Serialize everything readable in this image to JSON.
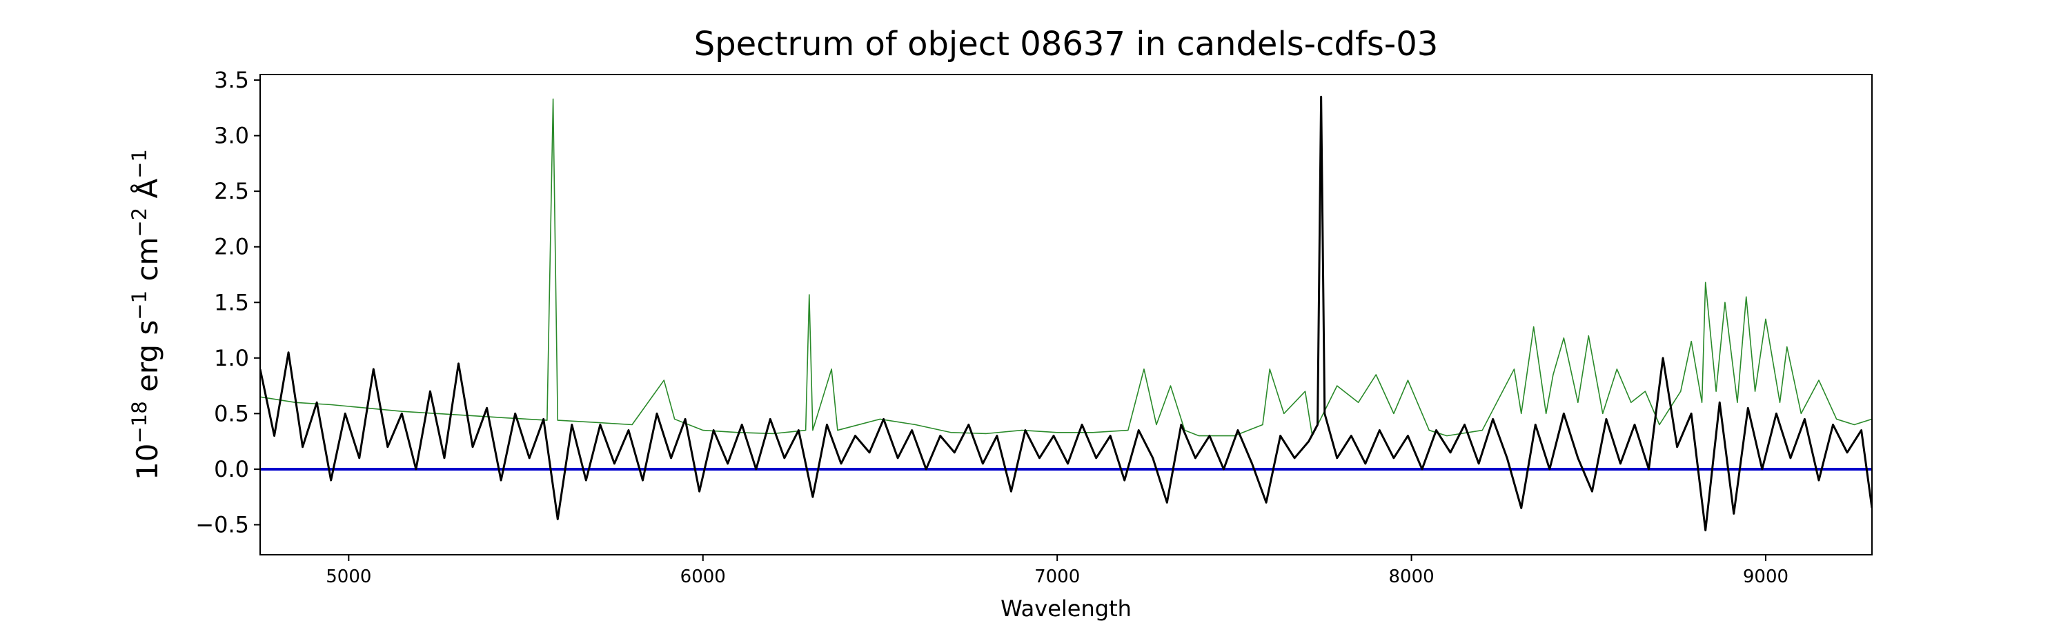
{
  "chart_data": {
    "type": "line",
    "title": "Spectrum of object 08637 in candels-cdfs-03",
    "xlabel": "Wavelength",
    "ylabel": [
      "10",
      "−18",
      " erg s",
      "−1",
      " cm",
      "−2",
      " Å",
      "−1"
    ],
    "xlim": [
      4750,
      9300
    ],
    "xticks": [
      5000,
      6000,
      7000,
      8000,
      9000
    ],
    "ylim": [
      -0.77,
      3.55
    ],
    "yticks": [
      {
        "value": -0.5,
        "label": "−0.5"
      },
      {
        "value": 0,
        "label": "0.0"
      },
      0.5,
      {
        "value": 1,
        "label": "1.0"
      },
      1.5,
      {
        "value": 2,
        "label": "2.0"
      },
      2.5,
      {
        "value": 3,
        "label": "3.0"
      },
      3.5
    ],
    "series": [
      {
        "color": "#2a8a2a",
        "width": 1.6,
        "x": [
          4750,
          4850,
          4950,
          5050,
          5150,
          5250,
          5350,
          5450,
          5560,
          5577,
          5590,
          5700,
          5800,
          5890,
          5920,
          6000,
          6100,
          6200,
          6290,
          6300,
          6310,
          6363,
          6380,
          6500,
          6600,
          6700,
          6800,
          6900,
          7000,
          7100,
          7200,
          7245,
          7280,
          7320,
          7360,
          7400,
          7500,
          7580,
          7600,
          7640,
          7700,
          7720,
          7790,
          7850,
          7900,
          7950,
          7990,
          8050,
          8100,
          8200,
          8290,
          8310,
          8345,
          8380,
          8400,
          8430,
          8470,
          8500,
          8540,
          8580,
          8620,
          8660,
          8700,
          8760,
          8790,
          8820,
          8830,
          8860,
          8885,
          8920,
          8945,
          8970,
          9000,
          9040,
          9060,
          9100,
          9150,
          9200,
          9250,
          9300
        ],
        "values": [
          0.65,
          0.6,
          0.58,
          0.55,
          0.52,
          0.5,
          0.48,
          0.46,
          0.44,
          3.33,
          0.44,
          0.42,
          0.4,
          0.8,
          0.45,
          0.35,
          0.33,
          0.32,
          0.35,
          1.57,
          0.35,
          0.9,
          0.35,
          0.45,
          0.4,
          0.33,
          0.32,
          0.35,
          0.33,
          0.33,
          0.35,
          0.9,
          0.4,
          0.75,
          0.35,
          0.3,
          0.3,
          0.4,
          0.9,
          0.5,
          0.7,
          0.3,
          0.75,
          0.6,
          0.85,
          0.5,
          0.8,
          0.35,
          0.3,
          0.35,
          0.9,
          0.5,
          1.28,
          0.5,
          0.85,
          1.18,
          0.6,
          1.2,
          0.5,
          0.9,
          0.6,
          0.7,
          0.4,
          0.7,
          1.15,
          0.6,
          1.68,
          0.7,
          1.5,
          0.6,
          1.55,
          0.7,
          1.35,
          0.6,
          1.1,
          0.5,
          0.8,
          0.45,
          0.4,
          0.45
        ]
      },
      {
        "color": "#0000cc",
        "width": 4,
        "x": [
          4750,
          9300
        ],
        "values": [
          0,
          0
        ]
      },
      {
        "color": "#000000",
        "width": 3,
        "x": [
          4750,
          4790,
          4830,
          4870,
          4910,
          4950,
          4990,
          5030,
          5070,
          5110,
          5150,
          5190,
          5230,
          5270,
          5310,
          5350,
          5390,
          5430,
          5470,
          5510,
          5550,
          5590,
          5630,
          5670,
          5710,
          5750,
          5790,
          5830,
          5870,
          5910,
          5950,
          5990,
          6030,
          6070,
          6110,
          6150,
          6190,
          6230,
          6270,
          6310,
          6350,
          6390,
          6430,
          6470,
          6510,
          6550,
          6590,
          6630,
          6670,
          6710,
          6750,
          6790,
          6830,
          6870,
          6910,
          6950,
          6990,
          7030,
          7070,
          7110,
          7150,
          7190,
          7230,
          7270,
          7310,
          7350,
          7390,
          7430,
          7470,
          7510,
          7550,
          7590,
          7630,
          7670,
          7710,
          7735,
          7745,
          7755,
          7790,
          7830,
          7870,
          7910,
          7950,
          7990,
          8030,
          8070,
          8110,
          8150,
          8190,
          8230,
          8270,
          8310,
          8350,
          8390,
          8430,
          8470,
          8510,
          8550,
          8590,
          8630,
          8670,
          8710,
          8750,
          8790,
          8830,
          8870,
          8910,
          8950,
          8990,
          9030,
          9070,
          9110,
          9150,
          9190,
          9230,
          9270,
          9300
        ],
        "values": [
          0.9,
          0.3,
          1.05,
          0.2,
          0.6,
          -0.1,
          0.5,
          0.1,
          0.9,
          0.2,
          0.5,
          0.0,
          0.7,
          0.1,
          0.95,
          0.2,
          0.55,
          -0.1,
          0.5,
          0.1,
          0.45,
          -0.45,
          0.4,
          -0.1,
          0.4,
          0.05,
          0.35,
          -0.1,
          0.5,
          0.1,
          0.45,
          -0.2,
          0.35,
          0.05,
          0.4,
          0.0,
          0.45,
          0.1,
          0.35,
          -0.25,
          0.4,
          0.05,
          0.3,
          0.15,
          0.45,
          0.1,
          0.35,
          0.0,
          0.3,
          0.15,
          0.4,
          0.05,
          0.3,
          -0.2,
          0.35,
          0.1,
          0.3,
          0.05,
          0.4,
          0.1,
          0.3,
          -0.1,
          0.35,
          0.1,
          -0.3,
          0.4,
          0.1,
          0.3,
          0.0,
          0.35,
          0.05,
          -0.3,
          0.3,
          0.1,
          0.25,
          0.4,
          3.35,
          0.5,
          0.1,
          0.3,
          0.05,
          0.35,
          0.1,
          0.3,
          0.0,
          0.35,
          0.15,
          0.4,
          0.05,
          0.45,
          0.1,
          -0.35,
          0.4,
          0.0,
          0.5,
          0.1,
          -0.2,
          0.45,
          0.05,
          0.4,
          0.0,
          1.0,
          0.2,
          0.5,
          -0.55,
          0.6,
          -0.4,
          0.55,
          0.0,
          0.5,
          0.1,
          0.45,
          -0.1,
          0.4,
          0.15,
          0.35,
          -0.35
        ]
      }
    ]
  }
}
